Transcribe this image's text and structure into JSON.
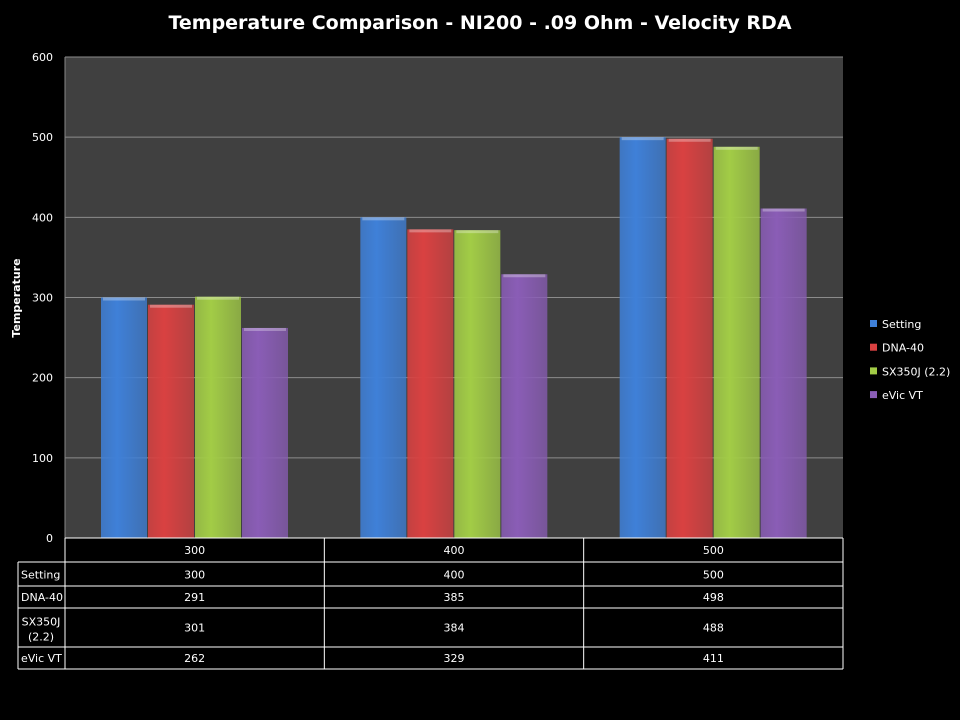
{
  "chart_data": {
    "type": "bar",
    "title": "Temperature Comparison - NI200 - .09 Ohm - Velocity RDA",
    "xlabel": "",
    "ylabel": "Temperature",
    "ylim": [
      0,
      600
    ],
    "yticks": [
      0,
      100,
      200,
      300,
      400,
      500,
      600
    ],
    "grid": true,
    "legend_position": "right",
    "categories": [
      "300",
      "400",
      "500"
    ],
    "series": [
      {
        "name": "Setting",
        "color": "#3f80d8",
        "values": [
          300,
          400,
          500
        ]
      },
      {
        "name": "DNA-40",
        "color": "#d94141",
        "values": [
          291,
          385,
          498
        ]
      },
      {
        "name": "SX350J (2.2)",
        "color": "#a2cc46",
        "values": [
          301,
          384,
          488
        ]
      },
      {
        "name": "eVic VT",
        "color": "#8a5db6",
        "values": [
          262,
          329,
          411
        ]
      }
    ]
  }
}
